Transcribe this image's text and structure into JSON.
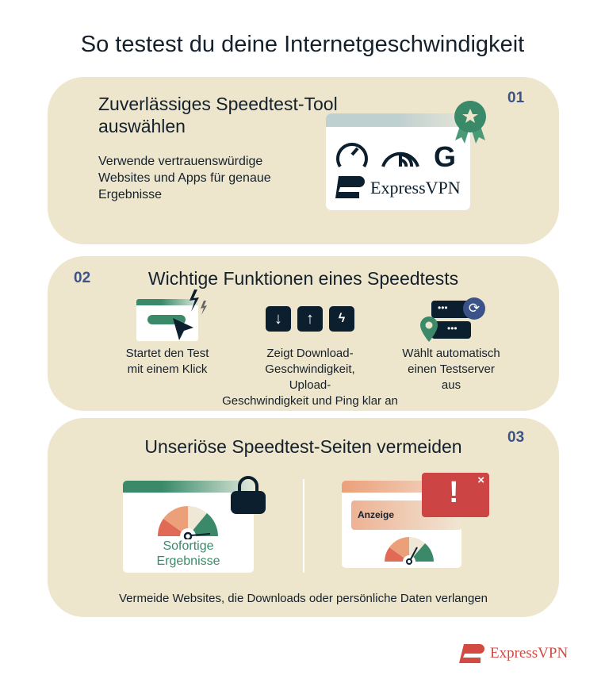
{
  "title": "So testest du deine Internetgeschwindigkeit",
  "steps": [
    {
      "number": "01",
      "title_lines": [
        "Zuverlässiges Speedtest-Tool",
        "auswählen"
      ],
      "description_lines": [
        "Verwende vertrauenswürdige",
        "Websites und Apps für genaue",
        "Ergebnisse"
      ],
      "brand": "ExpressVPN",
      "icons": [
        "speedometer-icon",
        "speed-signal-icon",
        "google-g-icon",
        "expressvpn-logo",
        "award-ribbon-icon"
      ]
    },
    {
      "number": "02",
      "title": "Wichtige Funktionen eines Speedtests",
      "features": [
        {
          "icon": "click-start-icon",
          "lines": [
            "Startet den Test",
            "mit einem Klick"
          ]
        },
        {
          "icon": "download-upload-ping-icons",
          "lines": [
            "Zeigt Download-",
            "Geschwindigkeit,",
            "Upload-",
            "Geschwindigkeit und Ping klar an"
          ]
        },
        {
          "icon": "server-location-icon",
          "lines": [
            "Wählt automatisch",
            "einen Testserver",
            "aus"
          ]
        }
      ]
    },
    {
      "number": "03",
      "title": "Unseriöse Speedtest-Seiten vermeiden",
      "good_label_lines": [
        "Sofortige",
        "Ergebnisse"
      ],
      "ad_label": "Anzeige",
      "alert_symbol": "!",
      "close_symbol": "×",
      "footer": "Vermeide Websites, die Downloads oder persönliche Daten verlangen"
    }
  ],
  "footer_brand": "ExpressVPN",
  "colors": {
    "card": "#ede6cc",
    "number": "#3b5388",
    "green": "#3a8a6a",
    "red": "#cc4444",
    "navy": "#0c1f2e"
  }
}
